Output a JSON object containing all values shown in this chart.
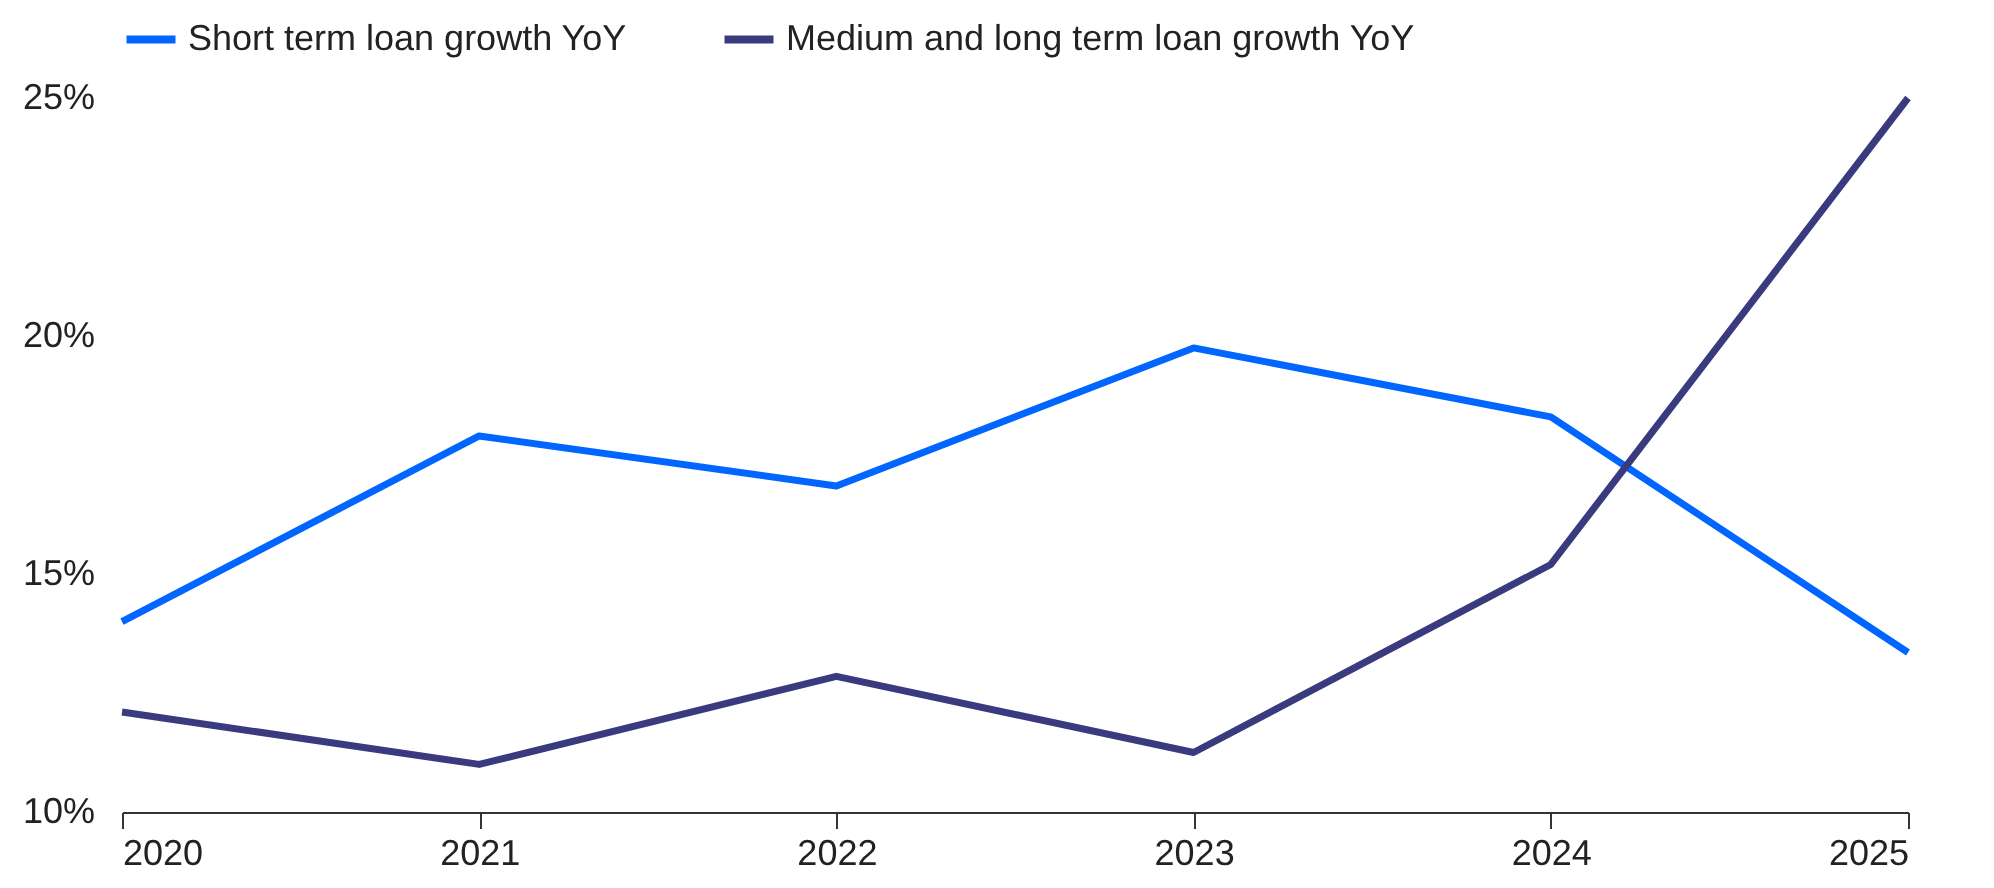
{
  "chart_data": {
    "type": "line",
    "categories": [
      "2020",
      "2021",
      "2022",
      "2023",
      "2024",
      "2025"
    ],
    "series": [
      {
        "name": "Short term loan growth YoY",
        "color": "#0066ff",
        "values": [
          14.0,
          17.9,
          16.85,
          19.75,
          18.3,
          13.35
        ]
      },
      {
        "name": "Medium and long term loan growth YoY",
        "color": "#3a3a7e",
        "values": [
          12.1,
          11.0,
          12.85,
          11.25,
          15.2,
          25.0
        ]
      }
    ],
    "ylim": [
      10,
      25
    ],
    "yticks": [
      {
        "value": 10,
        "label": "10%"
      },
      {
        "value": 15,
        "label": "15%"
      },
      {
        "value": 20,
        "label": "20%"
      },
      {
        "value": 25,
        "label": "25%"
      }
    ],
    "grid": false,
    "legend": "top",
    "marker": "none",
    "line_style": "solid"
  }
}
